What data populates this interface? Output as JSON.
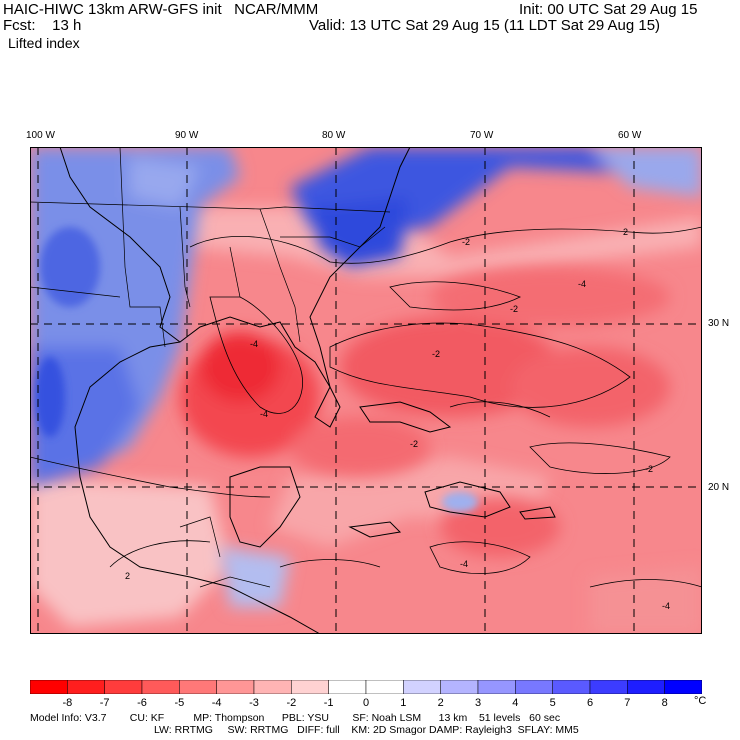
{
  "header": {
    "title": "HAIC-HIWC 13km ARW-GFS init   NCAR/MMM",
    "init": "Init: 00 UTC Sat 29 Aug 15",
    "fcst_label": "Fcst:    13 h",
    "valid": "Valid: 13 UTC Sat 29 Aug 15 (11 LDT Sat 29 Aug 15)",
    "field": "Lifted index"
  },
  "map": {
    "lon_labels": [
      "100 W",
      "90 W",
      "80 W",
      "70 W",
      "60 W"
    ],
    "lat_labels": [
      "30 N",
      "20 N"
    ],
    "contour_labels": [
      "2",
      "-2",
      "-2",
      "-4",
      "-2",
      "-4",
      "-4",
      "2",
      "-2",
      "-4",
      "-4",
      "-2"
    ],
    "colors": {
      "warm": "#f4646e",
      "cool": "#6a82ee",
      "neutral": "#ffffff"
    }
  },
  "legend": {
    "labels": [
      "-8",
      "-7",
      "-6",
      "-5",
      "-4",
      "-3",
      "-2",
      "-1",
      "0",
      "1",
      "2",
      "3",
      "4",
      "5",
      "6",
      "7",
      "8"
    ],
    "unit": "°C",
    "colors": [
      "#ff0000",
      "#ff1e1e",
      "#ff3c3c",
      "#ff5a5a",
      "#ff7878",
      "#ff9696",
      "#ffb4b4",
      "#ffd2d2",
      "#ffffff",
      "#d2d2ff",
      "#b4b4ff",
      "#9696ff",
      "#7878ff",
      "#5a5aff",
      "#3c3cff",
      "#1e1eff",
      "#0000ff"
    ]
  },
  "model_info": {
    "line1": "Model Info: V3.7        CU: KF          MP: Thompson      PBL: YSU        SF: Noah LSM      13 km    51 levels   60 sec",
    "line2": "LW: RRTMG     SW: RRTMG   DIFF: full    KM: 2D Smagor DAMP: Rayleigh3  SFLAY: MM5"
  }
}
